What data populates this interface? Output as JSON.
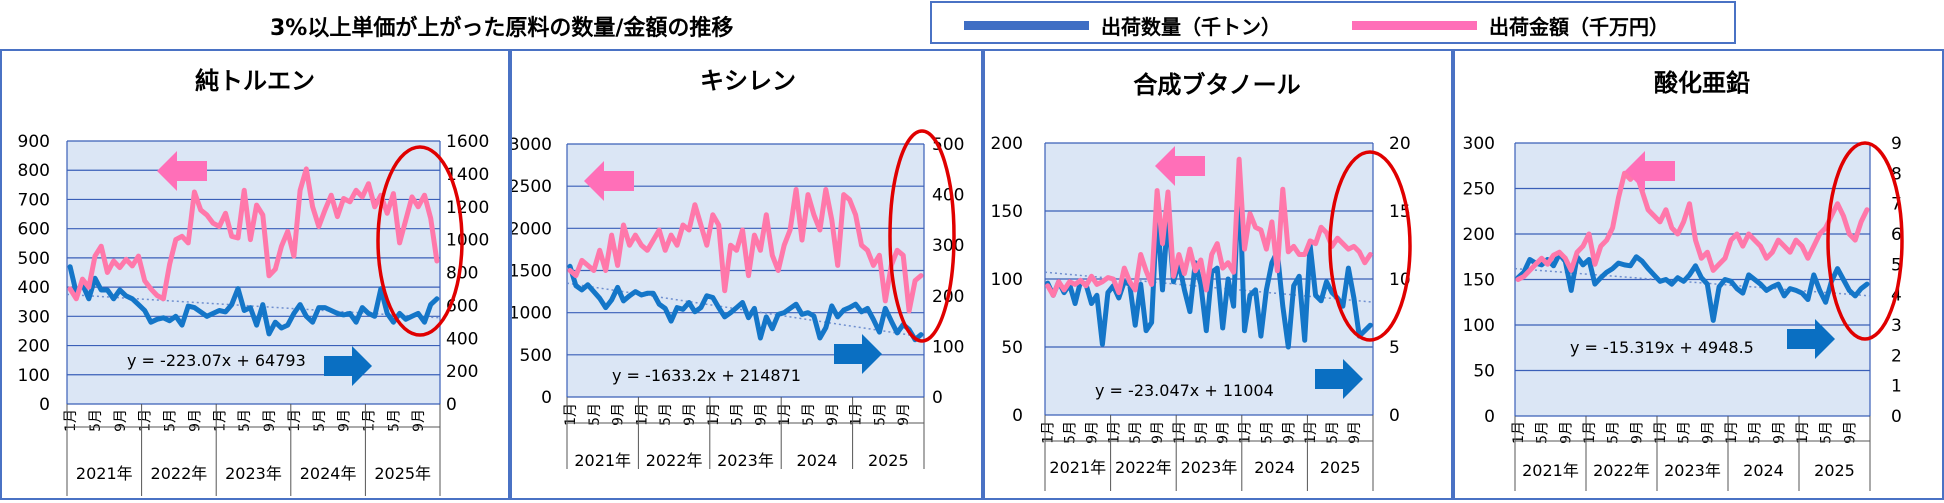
{
  "main_title": "3%以上単価が上がった原料の数量/金額の推移",
  "legend": [
    {
      "label": "出荷数量（千トン）",
      "color": "#3f6ec4"
    },
    {
      "label": "出荷金額（千万円）",
      "color": "#ff6fb8"
    }
  ],
  "colors": {
    "plot_bg": "#dbe6f5",
    "grid": "#3a5fb8",
    "qty_line": "#1476c8",
    "amt_line": "#ff78aa",
    "arrow_pink": "#ff6fb8",
    "arrow_blue": "#0a6fc2",
    "ellipse": "#e00000",
    "trend": "#6f8fcf"
  },
  "chart_data": [
    {
      "type": "line",
      "title": "純トルエン",
      "x_month_labels": [
        "1月",
        "5月",
        "9月",
        "1月",
        "5月",
        "9月",
        "1月",
        "5月",
        "9月",
        "1月",
        "5月",
        "9月",
        "1月",
        "5月",
        "9月"
      ],
      "x_year_labels": [
        "2021年",
        "2022年",
        "2023年",
        "2024年",
        "2025年"
      ],
      "y_left": {
        "ticks": [
          "900",
          "800",
          "700",
          "600",
          "500",
          "400",
          "300",
          "200",
          "100",
          "0"
        ],
        "range": [
          0,
          900
        ]
      },
      "y_right": {
        "ticks": [
          "1600",
          "1400",
          "1200",
          "1000",
          "800",
          "600",
          "400",
          "200",
          "0"
        ],
        "range": [
          0,
          1600
        ]
      },
      "trendline_label": "y = -223.07x + 64793",
      "trend": [
        375,
        295
      ],
      "series": [
        {
          "name": "出荷数量（千トン）",
          "axis": "left",
          "values": [
            470,
            380,
            410,
            360,
            430,
            390,
            390,
            360,
            390,
            370,
            360,
            340,
            320,
            280,
            290,
            295,
            285,
            300,
            270,
            335,
            330,
            315,
            300,
            310,
            320,
            315,
            340,
            395,
            320,
            330,
            270,
            340,
            240,
            280,
            260,
            270,
            310,
            340,
            300,
            280,
            330,
            330,
            320,
            310,
            305,
            310,
            280,
            330,
            310,
            300,
            395,
            310,
            280,
            310,
            290,
            300,
            310,
            280,
            340,
            360,
            390,
            300,
            270,
            290,
            310,
            290,
            330,
            340,
            360,
            370
          ]
        },
        {
          "name": "出荷金額（千万円）",
          "axis": "right",
          "values": [
            700,
            640,
            760,
            710,
            900,
            960,
            800,
            870,
            830,
            880,
            840,
            900,
            750,
            700,
            660,
            640,
            850,
            1000,
            1020,
            980,
            1290,
            1180,
            1150,
            1100,
            1080,
            1160,
            1020,
            1010,
            1300,
            1000,
            1210,
            1150,
            780,
            820,
            960,
            1050,
            900,
            1300,
            1430,
            1200,
            1080,
            1180,
            1270,
            1140,
            1250,
            1230,
            1300,
            1260,
            1340,
            1200,
            1270,
            1160,
            1280,
            980,
            1120,
            1260,
            1200,
            1270,
            1130,
            870,
            880,
            1180,
            1020,
            880,
            820,
            940,
            1020,
            1060,
            1130,
            1200
          ]
        }
      ]
    },
    {
      "type": "line",
      "title": "キシレン",
      "x_month_labels": [
        "1月",
        "5月",
        "9月",
        "1月",
        "5月",
        "9月",
        "1月",
        "5月",
        "9月",
        "1月",
        "5月",
        "9月",
        "1月",
        "5月",
        "9月"
      ],
      "x_year_labels": [
        "2021年",
        "2022年",
        "2023年",
        "2024",
        "2025"
      ],
      "y_left": {
        "ticks": [
          "3000",
          "2500",
          "2000",
          "1500",
          "1000",
          "500",
          "0"
        ],
        "range": [
          0,
          3000
        ]
      },
      "y_right": {
        "ticks": [
          "500",
          "400",
          "300",
          "200",
          "100",
          "0"
        ],
        "range": [
          0,
          500
        ]
      },
      "trendline_label": "y = -1633.2x + 214871",
      "trend": [
        1350,
        710
      ],
      "series": [
        {
          "name": "出荷数量（千トン）",
          "axis": "left",
          "values": [
            1550,
            1320,
            1270,
            1330,
            1250,
            1170,
            1060,
            1150,
            1300,
            1140,
            1200,
            1250,
            1210,
            1230,
            1230,
            1100,
            1050,
            900,
            1060,
            1040,
            1120,
            1010,
            1060,
            1200,
            1180,
            1060,
            950,
            1000,
            1060,
            1120,
            940,
            1050,
            700,
            950,
            810,
            980,
            1000,
            1050,
            1100,
            980,
            1000,
            960,
            700,
            820,
            1080,
            950,
            1030,
            1060,
            1100,
            1010,
            1050,
            920,
            770,
            1050,
            900,
            760,
            860,
            800,
            680,
            740,
            910,
            790,
            540,
            880,
            690,
            560,
            910,
            860,
            1000,
            1100
          ]
        },
        {
          "name": "出荷金額（千万円）",
          "axis": "right",
          "values": [
            250,
            240,
            270,
            260,
            250,
            290,
            250,
            320,
            260,
            340,
            300,
            320,
            300,
            290,
            310,
            330,
            290,
            320,
            300,
            340,
            330,
            380,
            340,
            300,
            360,
            340,
            210,
            300,
            290,
            330,
            240,
            320,
            290,
            360,
            280,
            250,
            300,
            330,
            410,
            310,
            400,
            360,
            330,
            410,
            350,
            260,
            400,
            390,
            360,
            300,
            290,
            260,
            280,
            190,
            260,
            290,
            280,
            170,
            230,
            240,
            250,
            280,
            230,
            210,
            230,
            300,
            310,
            250,
            270,
            360
          ]
        }
      ]
    },
    {
      "type": "line",
      "title": "合成ブタノール",
      "x_month_labels": [
        "1月",
        "5月",
        "9月",
        "1月",
        "5月",
        "9月",
        "1月",
        "5月",
        "9月",
        "1月",
        "5月",
        "9月",
        "1月",
        "5月",
        "9月"
      ],
      "x_year_labels": [
        "2021年",
        "2022年",
        "2023年",
        "2024",
        "2025"
      ],
      "y_left": {
        "ticks": [
          "200",
          "150",
          "100",
          "50",
          "0"
        ],
        "range": [
          0,
          200
        ]
      },
      "y_right": {
        "ticks": [
          "20",
          "15",
          "10",
          "5",
          "0"
        ],
        "range": [
          0,
          20
        ]
      },
      "trendline_label": "y = -23.047x + 11004",
      "trend": [
        105,
        83
      ],
      "series": [
        {
          "name": "出荷数量（千トン）",
          "axis": "left",
          "values": [
            97,
            88,
            98,
            90,
            96,
            82,
            98,
            96,
            82,
            88,
            52,
            90,
            95,
            86,
            98,
            96,
            66,
            96,
            62,
            68,
            152,
            92,
            148,
            98,
            112,
            92,
            76,
            112,
            96,
            62,
            105,
            108,
            64,
            100,
            80,
            178,
            62,
            88,
            92,
            58,
            92,
            112,
            120,
            80,
            50,
            95,
            102,
            55,
            125,
            88,
            84,
            98,
            90,
            86,
            80,
            108,
            86,
            58,
            62,
            66,
            102,
            72,
            78,
            86,
            86,
            82,
            58,
            76,
            80,
            88
          ]
        },
        {
          "name": "出荷金額（千万円）",
          "axis": "right",
          "values": [
            9.5,
            8.8,
            9.8,
            9.2,
            9.8,
            9.6,
            9.9,
            9.5,
            10.2,
            9.6,
            9.8,
            10.1,
            10.0,
            9.0,
            10.8,
            9.8,
            9.2,
            11.8,
            10.6,
            9.6,
            16.5,
            12.6,
            16.4,
            10.2,
            11.8,
            10.4,
            12.2,
            10.6,
            11.4,
            9.2,
            11.8,
            12.6,
            10.8,
            11.2,
            10.5,
            18.8,
            12.2,
            14.8,
            13.8,
            13.6,
            12.2,
            14.2,
            10.6,
            16.6,
            12.0,
            12.4,
            11.8,
            11.8,
            12.8,
            12.6,
            13.8,
            13.4,
            12.4,
            13.0,
            12.6,
            12.2,
            12.4,
            12.0,
            11.2,
            11.8,
            13.0,
            12.2,
            10.2,
            12.8,
            11.4,
            10.2,
            12.8,
            11.8,
            10.4,
            14.8
          ]
        }
      ]
    },
    {
      "type": "line",
      "title": "酸化亜鉛",
      "x_month_labels": [
        "1月",
        "5月",
        "9月",
        "1月",
        "5月",
        "9月",
        "1月",
        "5月",
        "9月",
        "1月",
        "5月",
        "9月",
        "1月",
        "5月",
        "9月"
      ],
      "x_year_labels": [
        "2021年",
        "2022年",
        "2023年",
        "2024",
        "2025"
      ],
      "y_left": {
        "ticks": [
          "300",
          "250",
          "200",
          "150",
          "100",
          "50",
          "0"
        ],
        "range": [
          0,
          300
        ]
      },
      "y_right": {
        "ticks": [
          "9",
          "8",
          "7",
          "6",
          "5",
          "4",
          "3",
          "2",
          "1",
          "0"
        ],
        "range": [
          0,
          9
        ]
      },
      "trendline_label": "y = -15.319x + 4948.5",
      "trend": [
        162,
        132
      ],
      "series": [
        {
          "name": "出荷数量（千トン）",
          "axis": "left",
          "values": [
            152,
            158,
            172,
            168,
            166,
            172,
            165,
            178,
            170,
            138,
            175,
            166,
            172,
            145,
            152,
            158,
            162,
            168,
            166,
            165,
            175,
            170,
            162,
            155,
            148,
            150,
            145,
            152,
            148,
            155,
            165,
            152,
            145,
            105,
            142,
            150,
            148,
            140,
            135,
            155,
            150,
            145,
            138,
            142,
            145,
            132,
            140,
            138,
            135,
            128,
            155,
            138,
            125,
            148,
            162,
            150,
            138,
            132,
            140,
            145,
            165,
            152,
            140,
            150,
            145,
            148,
            138,
            142,
            150,
            145
          ]
        },
        {
          "name": "出荷金額（千万円）",
          "axis": "right",
          "values": [
            4.5,
            4.6,
            4.8,
            5.0,
            5.2,
            5.0,
            5.3,
            5.4,
            5.2,
            4.8,
            5.4,
            5.6,
            6.0,
            5.0,
            5.6,
            5.8,
            6.2,
            7.2,
            8.0,
            7.8,
            8.0,
            7.4,
            6.8,
            6.6,
            6.4,
            6.8,
            6.2,
            6.0,
            6.4,
            7.0,
            5.8,
            5.2,
            5.4,
            4.8,
            5.0,
            5.2,
            5.8,
            6.0,
            5.6,
            6.0,
            5.8,
            5.6,
            5.2,
            5.4,
            5.8,
            5.6,
            5.4,
            5.8,
            5.6,
            5.2,
            5.6,
            6.0,
            6.2,
            6.6,
            7.0,
            6.6,
            6.0,
            5.8,
            6.4,
            6.8,
            6.4,
            5.8,
            6.0,
            6.2,
            6.0,
            5.8,
            5.6,
            5.8,
            6.2,
            6.6
          ]
        }
      ]
    }
  ]
}
